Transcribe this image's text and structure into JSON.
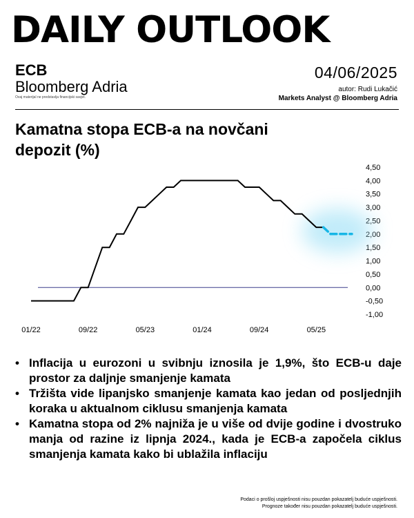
{
  "header": {
    "title": "DAILY OUTLOOK",
    "ecb": "ECB",
    "brand": "Bloomberg Adria",
    "disclaimer": "Ovaj materijal ne predstavlja financijski savjet.",
    "date": "04/06/2025",
    "author": "autor: Rudi Lukačić",
    "role": "Markets Analyst @ Bloomberg Adria"
  },
  "chart_title": "Kamatna stopa ECB-a na novčani depozit (%)",
  "chart_data": {
    "type": "line",
    "title": "Kamatna stopa ECB-a na novčani depozit (%)",
    "x_ticks": [
      "01/22",
      "09/22",
      "05/23",
      "01/24",
      "09/24",
      "05/25"
    ],
    "y_ticks": [
      "4,50",
      "4,00",
      "3,50",
      "3,00",
      "2,50",
      "2,00",
      "1,50",
      "1,00",
      "0,50",
      "0,00",
      "-0,50",
      "-1,00"
    ],
    "ylim": [
      -1.0,
      4.5
    ],
    "zero_line": 0.0,
    "series": [
      {
        "style": "solid",
        "points": [
          [
            "2022-01",
            -0.5
          ],
          [
            "2022-07",
            -0.5
          ],
          [
            "2022-08",
            0.0
          ],
          [
            "2022-09",
            0.0
          ],
          [
            "2022-10",
            0.75
          ],
          [
            "2022-11",
            1.5
          ],
          [
            "2022-12",
            1.5
          ],
          [
            "2023-01",
            2.0
          ],
          [
            "2023-02",
            2.0
          ],
          [
            "2023-03",
            2.5
          ],
          [
            "2023-04",
            3.0
          ],
          [
            "2023-05",
            3.0
          ],
          [
            "2023-06",
            3.25
          ],
          [
            "2023-07",
            3.5
          ],
          [
            "2023-08",
            3.75
          ],
          [
            "2023-09",
            3.75
          ],
          [
            "2023-10",
            4.0
          ],
          [
            "2024-06",
            4.0
          ],
          [
            "2024-07",
            3.75
          ],
          [
            "2024-09",
            3.75
          ],
          [
            "2024-10",
            3.5
          ],
          [
            "2024-11",
            3.25
          ],
          [
            "2024-12",
            3.25
          ],
          [
            "2025-01",
            3.0
          ],
          [
            "2025-02",
            2.75
          ],
          [
            "2025-03",
            2.75
          ],
          [
            "2025-04",
            2.5
          ],
          [
            "2025-05",
            2.25
          ],
          [
            "2025-06",
            2.25
          ]
        ]
      },
      {
        "style": "dashed-glow",
        "points": [
          [
            "2025-06",
            2.25
          ],
          [
            "2025-07",
            2.0
          ],
          [
            "2025-10",
            2.0
          ]
        ]
      }
    ],
    "grid": false
  },
  "bullets": [
    "Inflacija u eurozoni u svibnju iznosila je 1,9%, što ECB-u daje prostor za daljnje smanjenje kamata",
    "Tržišta vide lipanjsko smanjenje kamata kao jedan od posljednjih koraka u aktualnom ciklusu smanjenja kamata",
    "Kamatna stopa od 2% najniža je u više od dvije godine i dvostruko manja od razine iz lipnja 2024., kada je ECB-a započela ciklus smanjenja kamata kako bi ublažila inflaciju"
  ],
  "bullet_symbol": "•",
  "footer": {
    "line1": "Podaci o prošloj uspješnosti nisu pouzdan pokazatelj buduće uspješnosti.",
    "line2": "Prognoze također nisu pouzdan pokazatelj buduće uspješnosti."
  },
  "colors": {
    "line": "#000000",
    "zero_line": "#3b3f8c",
    "forecast": "#17b6e6",
    "glow": "#8fdcf5"
  }
}
